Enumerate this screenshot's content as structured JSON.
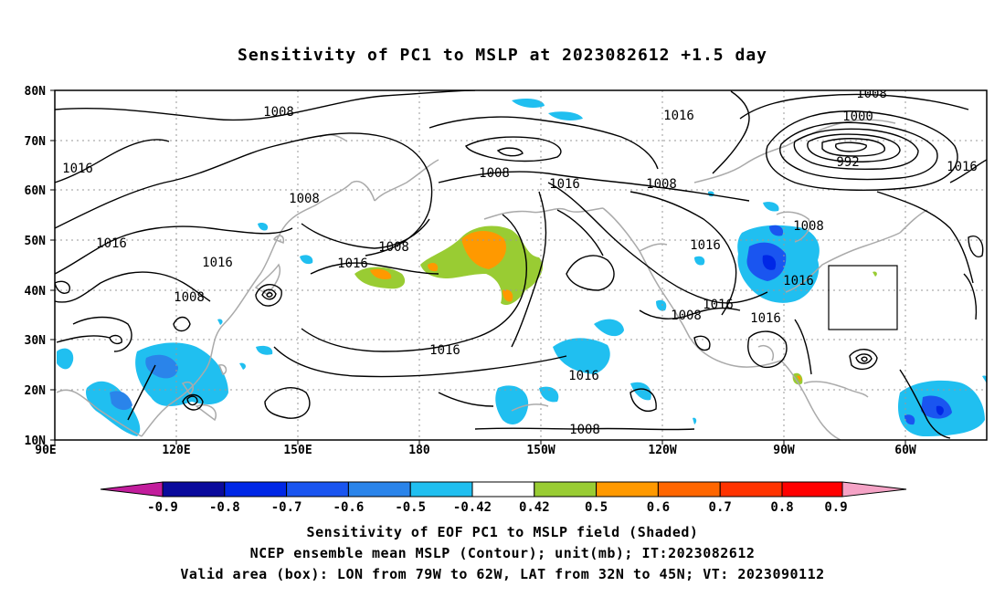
{
  "title": "Sensitivity of PC1 to MSLP at 2023082612 +1.5 day",
  "axes": {
    "lat_labels": [
      "80N",
      "70N",
      "60N",
      "50N",
      "40N",
      "30N",
      "20N",
      "10N"
    ],
    "lon_labels": [
      "90E",
      "120E",
      "150E",
      "180",
      "150W",
      "120W",
      "90W",
      "60W"
    ]
  },
  "contours": {
    "labels": [
      "1008",
      "1016",
      "1016",
      "1008",
      "1016",
      "1016",
      "1008",
      "1008",
      "1016",
      "1008",
      "1016",
      "1008",
      "1016",
      "1016",
      "1008",
      "1016",
      "1008",
      "1000",
      "992",
      "1016",
      "1008",
      "1016",
      "1016",
      "1008",
      "1016",
      "1008"
    ]
  },
  "colorbar": {
    "tick_labels": [
      "-0.9",
      "-0.8",
      "-0.7",
      "-0.6",
      "-0.5",
      "-0.42",
      "0.42",
      "0.5",
      "0.6",
      "0.7",
      "0.8",
      "0.9"
    ],
    "colors": [
      "#c21d9c",
      "#0a0a9c",
      "#0027e6",
      "#1a55f0",
      "#2a84ea",
      "#20bff0",
      "#ffffff",
      "#99cc33",
      "#ff9900",
      "#ff6600",
      "#ff3300",
      "#ff0000",
      "#f5a3c6"
    ]
  },
  "captions": {
    "line1": "Sensitivity of EOF PC1 to MSLP field (Shaded)",
    "line2": "NCEP ensemble mean MSLP (Contour); unit(mb); IT:2023082612",
    "line3": "Valid area (box): LON from 79W to 62W, LAT from 32N to 45N; VT: 2023090112"
  },
  "colors": {
    "coast": "#aaaaaa",
    "grid": "#999999",
    "contour": "#000000"
  }
}
